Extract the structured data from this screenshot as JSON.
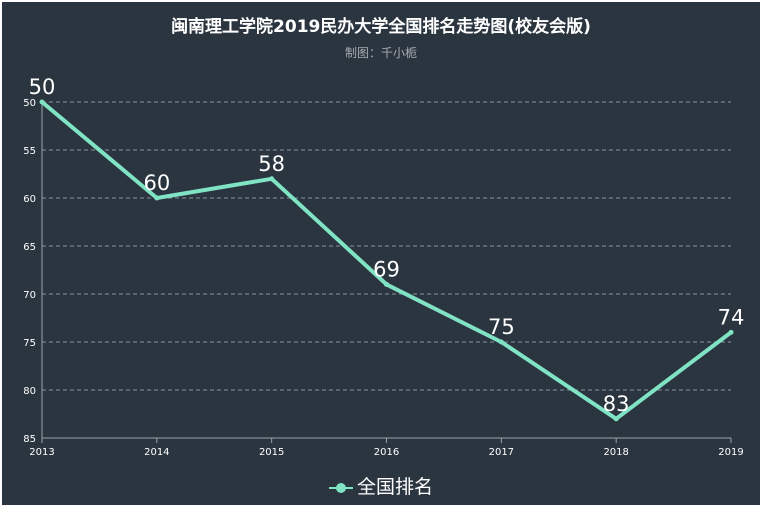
{
  "title": "闽南理工学院2019民办大学全国排名走势图(校友会版)",
  "subtitle": "制图：千小栀",
  "legend": {
    "label": "全国排名",
    "color": "#7fe3c4"
  },
  "chart_data": {
    "type": "line",
    "title": "闽南理工学院2019民办大学全国排名走势图(校友会版)",
    "subtitle": "制图：千小栀",
    "categories": [
      "2013",
      "2014",
      "2015",
      "2016",
      "2017",
      "2018",
      "2019"
    ],
    "series": [
      {
        "name": "全国排名",
        "values": [
          50,
          60,
          58,
          69,
          75,
          83,
          74
        ],
        "color": "#7fe3c4"
      }
    ],
    "y_inverted": true,
    "ylim": [
      50,
      85
    ],
    "yticks": [
      50,
      55,
      60,
      65,
      70,
      75,
      80,
      85
    ],
    "xlabel": "",
    "ylabel": "",
    "grid": true,
    "legend_position": "bottom-center"
  }
}
